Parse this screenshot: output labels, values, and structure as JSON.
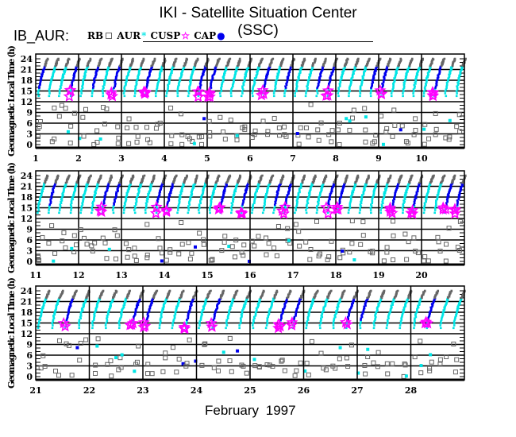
{
  "title": "IKI - Satellite Situation Center (SSC)",
  "subtitle": "IB_AUR:",
  "legend": [
    {
      "label": "RB",
      "color": "#666666",
      "symbol": "square"
    },
    {
      "label": "AUR",
      "color": "#00e5e5",
      "symbol": "asterisk"
    },
    {
      "label": "CUSP",
      "color": "#ff00ff",
      "symbol": "star"
    },
    {
      "label": "CAP",
      "color": "#0000ee",
      "symbol": "dot"
    }
  ],
  "month_label": "February   1997",
  "chart_data": {
    "type": "scatter",
    "title": "IKI - Satellite Situation Center (SSC)",
    "ylabel": "Geomagnetic Local Time (h)",
    "xlabel": "February 1997",
    "ylim": [
      0,
      24
    ],
    "yticks": [
      0,
      3,
      6,
      9,
      12,
      15,
      18,
      21,
      24
    ],
    "grid": true,
    "orbits_per_day": 4,
    "regions_mlt": {
      "RB": [
        [
          0,
          12
        ],
        [
          22,
          24
        ]
      ],
      "AUR": [
        [
          13,
          22
        ]
      ],
      "CAP": [
        [
          15,
          22
        ]
      ],
      "CUSP": [
        [
          13,
          15.5
        ]
      ]
    },
    "panels": [
      {
        "days": [
          "1",
          "2",
          "3",
          "4",
          "5",
          "6",
          "7",
          "8",
          "9",
          "10"
        ]
      },
      {
        "days": [
          "11",
          "12",
          "13",
          "14",
          "15",
          "16",
          "17",
          "18",
          "19",
          "20"
        ]
      },
      {
        "days": [
          "21",
          "22",
          "23",
          "24",
          "25",
          "26",
          "27",
          "28"
        ]
      }
    ]
  }
}
